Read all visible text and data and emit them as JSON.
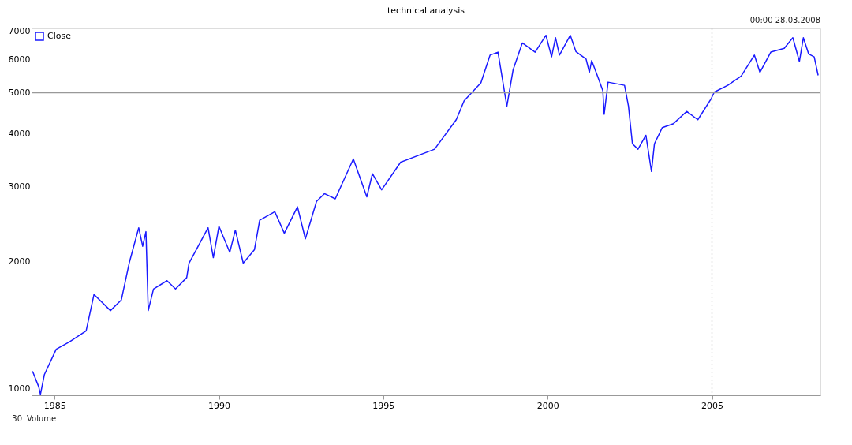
{
  "chart_data": {
    "type": "line",
    "title": "technical analysis",
    "annotations": [
      "00:00 28.03.2008",
      "30",
      "Volume"
    ],
    "x": [
      1984.33,
      1984.52,
      1984.57,
      1984.69,
      1985.05,
      1985.45,
      1985.96,
      1986.2,
      1986.7,
      1987.03,
      1987.27,
      1987.56,
      1987.68,
      1987.78,
      1987.85,
      1988.01,
      1988.42,
      1988.68,
      1989.02,
      1989.09,
      1989.67,
      1989.83,
      1990.0,
      1990.33,
      1990.5,
      1990.74,
      1991.08,
      1991.24,
      1991.7,
      1991.99,
      1992.39,
      1992.63,
      1992.97,
      1993.21,
      1993.54,
      1994.09,
      1994.5,
      1994.67,
      1994.95,
      1995.53,
      1996.56,
      1997.22,
      1997.46,
      1997.97,
      1998.25,
      1998.49,
      1998.76,
      1998.95,
      1999.23,
      1999.62,
      1999.95,
      2000.12,
      2000.24,
      2000.36,
      2000.69,
      2000.86,
      2001.17,
      2001.27,
      2001.34,
      2001.51,
      2001.68,
      2001.72,
      2001.84,
      2002.34,
      2002.46,
      2002.58,
      2002.75,
      2002.99,
      2003.16,
      2003.25,
      2003.49,
      2003.83,
      2004.23,
      2004.57,
      2004.98,
      2005.07,
      2005.48,
      2005.89,
      2006.29,
      2006.46,
      2006.79,
      2007.2,
      2007.46,
      2007.66,
      2007.78,
      2007.94,
      2008.11,
      2008.23
    ],
    "series": [
      {
        "name": "Close",
        "color": "#1a1aff",
        "values": [
          1100,
          1010,
          970,
          1080,
          1240,
          1290,
          1370,
          1670,
          1530,
          1620,
          1980,
          2400,
          2170,
          2350,
          1530,
          1720,
          1800,
          1720,
          1830,
          1980,
          2400,
          2040,
          2420,
          2100,
          2370,
          1980,
          2130,
          2500,
          2620,
          2330,
          2690,
          2260,
          2770,
          2890,
          2810,
          3490,
          2840,
          3220,
          2950,
          3430,
          3680,
          4320,
          4790,
          5280,
          6140,
          6240,
          4650,
          5670,
          6560,
          6240,
          6840,
          6080,
          6750,
          6140,
          6840,
          6260,
          6010,
          5590,
          5960,
          5500,
          5060,
          4450,
          5300,
          5210,
          4650,
          3790,
          3680,
          3970,
          3260,
          3790,
          4140,
          4230,
          4520,
          4320,
          4850,
          5020,
          5210,
          5480,
          6140,
          5590,
          6240,
          6370,
          6750,
          5930,
          6750,
          6180,
          6080,
          5500
        ]
      }
    ],
    "xlim": [
      1984.3,
      2008.3
    ],
    "xticks": [
      1985,
      1990,
      1995,
      2000,
      2005
    ],
    "ylim": [
      965,
      7100
    ],
    "yticks": [
      1000,
      2000,
      3000,
      4000,
      5000,
      6000,
      7000
    ],
    "log": true,
    "grid": false,
    "legend": "top left",
    "marker": "none",
    "line_style": "solid",
    "ref_lines": [
      {
        "axis": "y",
        "value": 5000,
        "color": "#999999",
        "line_style": "solid"
      },
      {
        "axis": "x",
        "value": 2005,
        "color": "#999999",
        "line_style": "dotted"
      }
    ]
  }
}
